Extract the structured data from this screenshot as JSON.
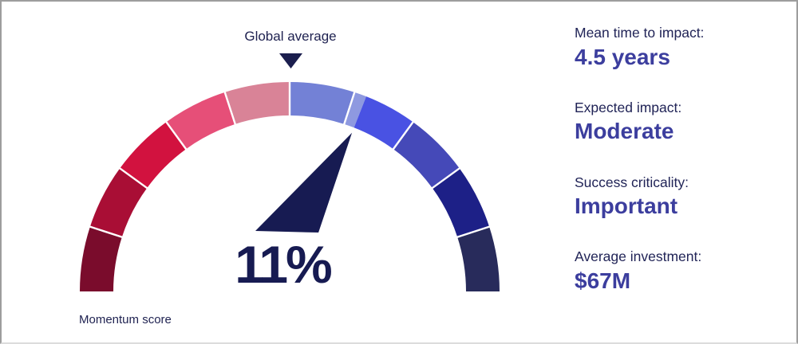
{
  "page": {
    "background": "#ffffff",
    "border_color": "#9d9d9d"
  },
  "chart_data": {
    "type": "gauge",
    "annotation": "Global average",
    "center_value": "11%",
    "axis_label": "Momentum score",
    "gauge_range_deg": [
      180,
      0
    ],
    "marker_angle_deg": 90,
    "needle_angle_deg": 68.6,
    "needle_color": "#171b52",
    "marker_color": "#1b1e4e",
    "divider_color": "#ffffff",
    "divider_angles_deg": [
      162,
      144,
      126,
      108,
      90,
      72,
      54,
      36,
      18
    ],
    "segments": [
      {
        "name": "segment-1",
        "from_deg": 180,
        "to_deg": 162,
        "color": "#7a0c2c"
      },
      {
        "name": "segment-2",
        "from_deg": 162,
        "to_deg": 144,
        "color": "#a90e35"
      },
      {
        "name": "segment-3",
        "from_deg": 144,
        "to_deg": 126,
        "color": "#d2123f"
      },
      {
        "name": "segment-4",
        "from_deg": 126,
        "to_deg": 108,
        "color": "#e64f78"
      },
      {
        "name": "segment-5",
        "from_deg": 108,
        "to_deg": 90,
        "color": "#d98397"
      },
      {
        "name": "segment-6",
        "from_deg": 90,
        "to_deg": 72,
        "color": "#7381d6"
      },
      {
        "name": "segment-7",
        "from_deg": 72,
        "to_deg": 68.6,
        "color": "#8e99e0"
      },
      {
        "name": "segment-8",
        "from_deg": 68.6,
        "to_deg": 54,
        "color": "#4952e3"
      },
      {
        "name": "segment-9",
        "from_deg": 54,
        "to_deg": 36,
        "color": "#4549b8"
      },
      {
        "name": "segment-10",
        "from_deg": 36,
        "to_deg": 18,
        "color": "#1d2087"
      },
      {
        "name": "segment-11",
        "from_deg": 18,
        "to_deg": 0,
        "color": "#282b5b"
      }
    ]
  },
  "stats": {
    "label_color": "#212457",
    "value_color": "#3c3e9e",
    "heading_color": "#1e2150",
    "items": [
      {
        "label": "Mean time to impact:",
        "value": "4.5 years"
      },
      {
        "label": "Expected impact:",
        "value": "Moderate"
      },
      {
        "label": "Success criticality:",
        "value": "Important"
      },
      {
        "label": "Average investment:",
        "value": "$67M"
      }
    ]
  }
}
